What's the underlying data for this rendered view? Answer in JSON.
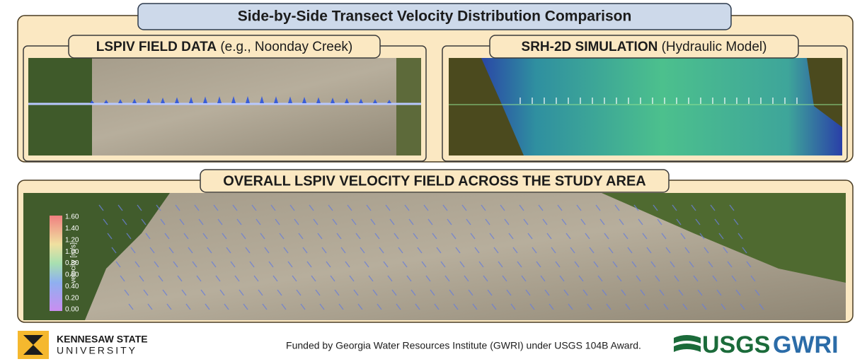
{
  "header": {
    "title": "Side-by-Side Transect Velocity Distribution Comparison"
  },
  "panels": [
    {
      "title_bold": "LSPIV FIELD DATA",
      "title_rest": "(e.g., Noonday Creek)"
    },
    {
      "title_bold": "SRH-2D SIMULATION",
      "title_rest": "(Hydraulic Model)"
    }
  ],
  "overview": {
    "title": "OVERALL LSPIV VELOCITY FIELD ACROSS THE STUDY AREA",
    "colorbar": {
      "label": "velocity [m/s]",
      "ticks": [
        "1.60",
        "1.40",
        "1.20",
        "1.00",
        "0.80",
        "0.60",
        "0.40",
        "0.20",
        "0.00"
      ]
    }
  },
  "footer": {
    "logo_line1": "KENNESAW STATE",
    "logo_line2": "UNIVERSITY",
    "funding": "Funded by Georgia Water Resources Institute (GWRI) under USGS 104B Award.",
    "usgs": "USGS",
    "gwri": "GWRI"
  }
}
